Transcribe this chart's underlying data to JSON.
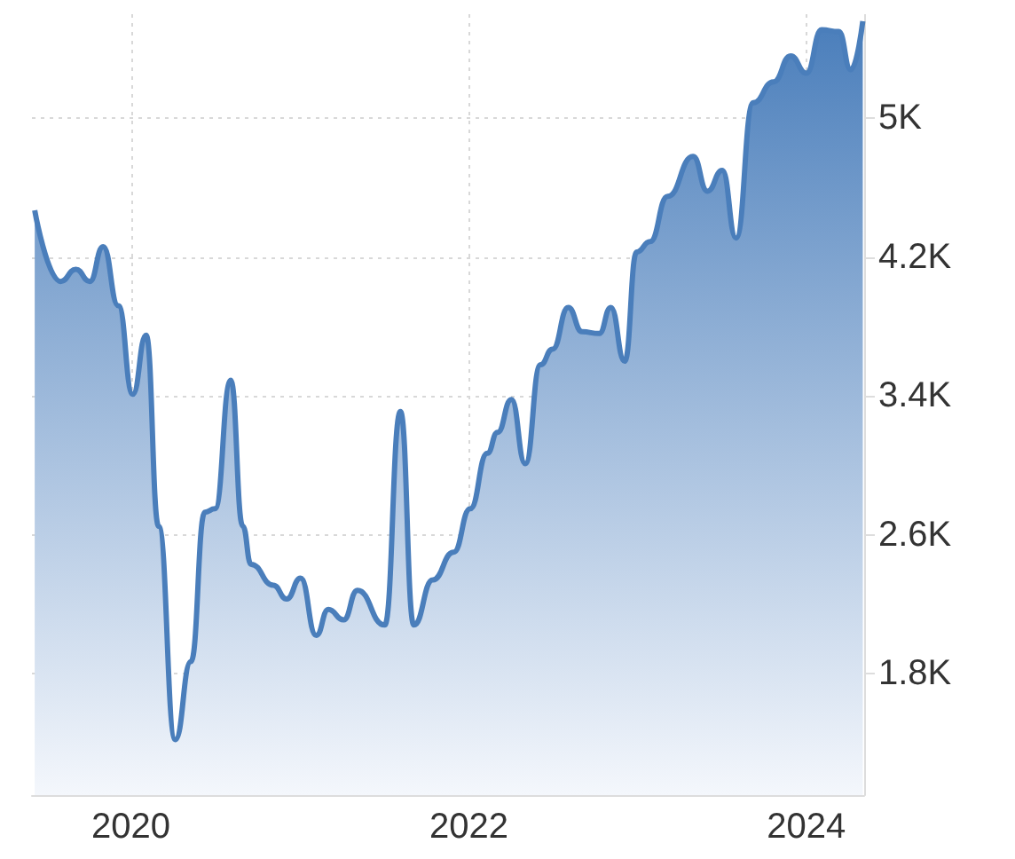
{
  "chart_data": {
    "type": "area",
    "color": "#4a7ebb",
    "x": [
      "2019-06-07",
      "2019-08-02",
      "2019-09-04",
      "2019-10-04",
      "2019-11-02",
      "2019-12-05",
      "2020-01-05",
      "2020-02-03",
      "2020-03-01",
      "2020-04-06",
      "2020-05-10",
      "2020-06-09",
      "2020-07-01",
      "2020-08-04",
      "2020-08-30",
      "2020-09-17",
      "2020-11-04",
      "2020-12-03",
      "2021-01-02",
      "2021-02-05",
      "2021-03-03",
      "2021-04-05",
      "2021-05-05",
      "2021-07-03",
      "2021-08-06",
      "2021-09-04",
      "2021-10-15",
      "2021-11-29",
      "2022-01-04",
      "2022-02-10",
      "2022-03-04",
      "2022-04-03",
      "2022-05-03",
      "2022-06-05",
      "2022-07-01",
      "2022-08-04",
      "2022-09-03",
      "2022-10-10",
      "2022-11-04",
      "2022-12-04",
      "2022-12-30",
      "2023-01-28",
      "2023-03-07",
      "2023-05-01",
      "2023-06-01",
      "2023-07-03",
      "2023-08-02",
      "2023-09-08",
      "2023-10-22",
      "2023-11-28",
      "2024-01-01",
      "2024-02-03",
      "2024-03-11",
      "2024-04-06",
      "2024-05-02"
    ],
    "values": [
      4470,
      4060,
      4130,
      4060,
      4260,
      3920,
      3410,
      3750,
      2650,
      1420,
      1870,
      2730,
      2750,
      3490,
      2650,
      2430,
      2310,
      2230,
      2350,
      2020,
      2170,
      2110,
      2280,
      2080,
      3310,
      2080,
      2340,
      2500,
      2750,
      3070,
      3190,
      3380,
      3010,
      3580,
      3670,
      3910,
      3770,
      3760,
      3910,
      3600,
      4230,
      4290,
      4550,
      4780,
      4580,
      4700,
      4310,
      5090,
      5210,
      5360,
      5260,
      5510,
      5500,
      5280,
      5560
    ],
    "xlim": [
      "2019-06-01",
      "2024-05-05"
    ],
    "ylim": [
      1100,
      5600
    ],
    "xticks": [
      {
        "value": "2020-01-01",
        "label": "2020"
      },
      {
        "value": "2022-01-01",
        "label": "2022"
      },
      {
        "value": "2024-01-01",
        "label": "2024"
      }
    ],
    "yticks": [
      {
        "value": 1800,
        "label": "1.8K"
      },
      {
        "value": 2600,
        "label": "2.6K"
      },
      {
        "value": 3400,
        "label": "3.4K"
      },
      {
        "value": 4200,
        "label": "4.2K"
      },
      {
        "value": 5000,
        "label": "5K"
      }
    ],
    "grid": true,
    "marker": "none",
    "line_style": "solid"
  }
}
